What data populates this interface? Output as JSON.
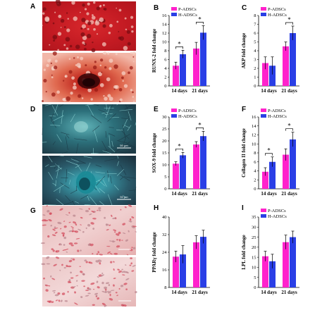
{
  "colors": {
    "p": "#ff22cc",
    "h": "#2a3fe6"
  },
  "micro_panels": [
    {
      "letter": "A",
      "theme": "red-top",
      "scale_label": ""
    },
    {
      "letter": "A",
      "theme": "red-bottom",
      "scale_label": ""
    },
    {
      "letter": "D",
      "theme": "blue-top",
      "scale_label": "50 µm"
    },
    {
      "letter": "D",
      "theme": "blue-bottom",
      "scale_label": "50 µm"
    },
    {
      "letter": "G",
      "theme": "pink-top",
      "scale_label": ""
    },
    {
      "letter": "G",
      "theme": "pink-bottom",
      "scale_label": ""
    }
  ],
  "chart_data": [
    {
      "letter": "B",
      "type": "bar",
      "categories": [
        "14 days",
        "21 days"
      ],
      "ylabel": "RUNX-2 fold change",
      "ylim": [
        0,
        16
      ],
      "yticks": [
        0,
        2,
        4,
        6,
        8,
        10,
        12,
        14,
        16
      ],
      "series": [
        {
          "name": "P-ADSCs",
          "values": [
            4.6,
            8.5
          ],
          "errors": [
            0.8,
            1.4
          ]
        },
        {
          "name": "H-ADSCs",
          "values": [
            7.2,
            12.1
          ],
          "errors": [
            0.9,
            1.6
          ]
        }
      ],
      "legend": true,
      "sig": [
        true,
        true
      ]
    },
    {
      "letter": "C",
      "type": "bar",
      "categories": [
        "14 days",
        "21 days"
      ],
      "ylabel": "AKP fold change",
      "ylim": [
        0,
        8
      ],
      "yticks": [
        0,
        1,
        2,
        3,
        4,
        5,
        6,
        7,
        8
      ],
      "series": [
        {
          "name": "P-ADSCs",
          "values": [
            2.6,
            4.5
          ],
          "errors": [
            0.7,
            0.5
          ]
        },
        {
          "name": "H-ADSCs",
          "values": [
            2.3,
            6.0
          ],
          "errors": [
            1.0,
            0.8
          ]
        }
      ],
      "legend": true,
      "sig": [
        false,
        true
      ]
    },
    {
      "letter": "E",
      "type": "bar",
      "categories": [
        "14 days",
        "21 days"
      ],
      "ylabel": "SOX-9 fold change",
      "ylim": [
        0,
        30
      ],
      "yticks": [
        0,
        5,
        10,
        15,
        20,
        25,
        30
      ],
      "series": [
        {
          "name": "P-ADSCs",
          "values": [
            10.5,
            18.5
          ],
          "errors": [
            0.8,
            1.2
          ]
        },
        {
          "name": "H-ADSCs",
          "values": [
            14.0,
            22.0
          ],
          "errors": [
            1.2,
            2.0
          ]
        }
      ],
      "legend": true,
      "sig": [
        true,
        true
      ]
    },
    {
      "letter": "F",
      "type": "bar",
      "categories": [
        "14 days",
        "21 days"
      ],
      "ylabel": "Collagen II fold change",
      "ylim": [
        0,
        16
      ],
      "yticks": [
        0,
        2,
        4,
        6,
        8,
        10,
        12,
        14,
        16
      ],
      "series": [
        {
          "name": "P-ADSCs",
          "values": [
            3.8,
            7.6
          ],
          "errors": [
            0.9,
            1.3
          ]
        },
        {
          "name": "H-ADSCs",
          "values": [
            6.0,
            11.0
          ],
          "errors": [
            1.1,
            1.6
          ]
        }
      ],
      "legend": true,
      "sig": [
        true,
        true
      ]
    },
    {
      "letter": "H",
      "type": "bar",
      "categories": [
        "14 days",
        "21 days"
      ],
      "ylabel": "PPARγ fold change",
      "ylim": [
        8,
        40
      ],
      "yticks": [
        8,
        16,
        24,
        32,
        40
      ],
      "series": [
        {
          "name": "P-ADSCs",
          "values": [
            22.0,
            28.5
          ],
          "errors": [
            2.5,
            3.0
          ]
        },
        {
          "name": "H-ADSCs",
          "values": [
            23.0,
            31.0
          ],
          "errors": [
            4.0,
            3.0
          ]
        }
      ],
      "legend": false,
      "sig": [
        false,
        false
      ]
    },
    {
      "letter": "I",
      "type": "bar",
      "categories": [
        "14 days",
        "21 days"
      ],
      "ylabel": "LPL fold change",
      "ylim": [
        0,
        35
      ],
      "yticks": [
        0,
        5,
        10,
        15,
        20,
        25,
        30,
        35
      ],
      "series": [
        {
          "name": "P-ADSCs",
          "values": [
            15.5,
            22.5
          ],
          "errors": [
            2.5,
            3.5
          ]
        },
        {
          "name": "H-ADSCs",
          "values": [
            13.0,
            25.0
          ],
          "errors": [
            3.5,
            3.0
          ]
        }
      ],
      "legend": true,
      "sig": [
        false,
        false
      ]
    }
  ]
}
